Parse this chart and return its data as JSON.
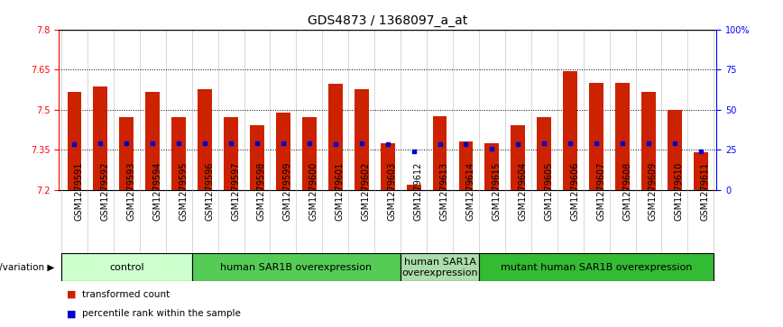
{
  "title": "GDS4873 / 1368097_a_at",
  "samples": [
    "GSM1279591",
    "GSM1279592",
    "GSM1279593",
    "GSM1279594",
    "GSM1279595",
    "GSM1279596",
    "GSM1279597",
    "GSM1279598",
    "GSM1279599",
    "GSM1279600",
    "GSM1279601",
    "GSM1279602",
    "GSM1279603",
    "GSM1279612",
    "GSM1279613",
    "GSM1279614",
    "GSM1279615",
    "GSM1279604",
    "GSM1279605",
    "GSM1279606",
    "GSM1279607",
    "GSM1279608",
    "GSM1279609",
    "GSM1279610",
    "GSM1279611"
  ],
  "bar_tops": [
    7.565,
    7.585,
    7.47,
    7.565,
    7.47,
    7.575,
    7.47,
    7.44,
    7.49,
    7.47,
    7.595,
    7.575,
    7.375,
    7.22,
    7.475,
    7.38,
    7.375,
    7.44,
    7.47,
    7.645,
    7.6,
    7.6,
    7.565,
    7.5,
    7.34
  ],
  "blue_dots": [
    7.37,
    7.375,
    7.375,
    7.375,
    7.375,
    7.375,
    7.375,
    7.375,
    7.375,
    7.375,
    7.37,
    7.375,
    7.37,
    7.345,
    7.37,
    7.37,
    7.355,
    7.37,
    7.375,
    7.375,
    7.375,
    7.375,
    7.375,
    7.375,
    7.345
  ],
  "bar_color": "#cc2200",
  "blue_color": "#0000cc",
  "ymin": 7.2,
  "ymax": 7.8,
  "yticks_left": [
    7.2,
    7.35,
    7.5,
    7.65,
    7.8
  ],
  "ytick_left_labels": [
    "7.2",
    "7.35",
    "7.5",
    "7.65",
    "7.8"
  ],
  "yticks_right": [
    0,
    25,
    50,
    75,
    100
  ],
  "ytick_right_labels": [
    "0",
    "25",
    "50",
    "75",
    "100%"
  ],
  "dotted_lines": [
    7.35,
    7.5,
    7.65
  ],
  "groups": [
    {
      "label": "control",
      "start": 0,
      "end": 4,
      "color": "#ccffcc"
    },
    {
      "label": "human SAR1B overexpression",
      "start": 5,
      "end": 12,
      "color": "#55cc55"
    },
    {
      "label": "human SAR1A\noverexpression",
      "start": 13,
      "end": 15,
      "color": "#aaddaa"
    },
    {
      "label": "mutant human SAR1B overexpression",
      "start": 16,
      "end": 24,
      "color": "#33bb33"
    }
  ],
  "group_label": "genotype/variation",
  "legend_items": [
    {
      "color": "#cc2200",
      "label": "transformed count"
    },
    {
      "color": "#0000cc",
      "label": "percentile rank within the sample"
    }
  ],
  "bar_width": 0.55,
  "title_fontsize": 10,
  "tick_fontsize": 7,
  "group_fontsize": 8
}
